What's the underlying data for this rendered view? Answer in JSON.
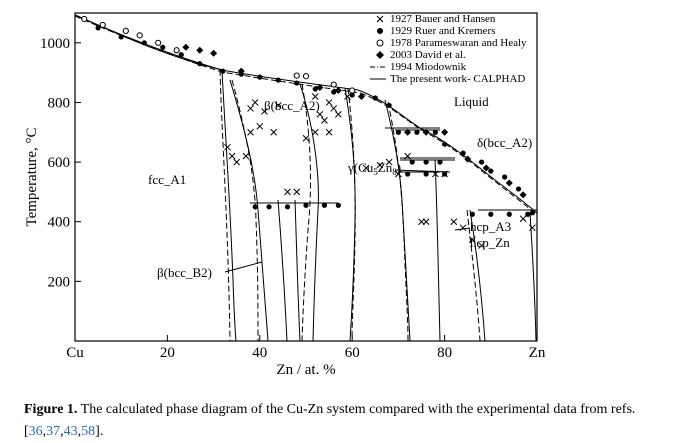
{
  "figure": {
    "x_ticks": [
      "Cu",
      "20",
      "40",
      "60",
      "80",
      "Zn"
    ],
    "y_ticks": [
      "200",
      "400",
      "600",
      "800",
      "1000"
    ],
    "xlabel": "Zn / at. %",
    "ylabel": "Temperature, °C",
    "legend": [
      {
        "marker": "×",
        "label": "1927 Bauer and Hansen"
      },
      {
        "marker": "●",
        "label": "1929 Ruer and Kremers"
      },
      {
        "marker": "○",
        "label": "1978 Parameswaran and Healy"
      },
      {
        "marker": "◆",
        "label": "2003 David et al."
      },
      {
        "marker": "-·-",
        "label": "1994 Miodownik"
      },
      {
        "marker": "—",
        "label": "The present work- CALPHAD"
      }
    ],
    "phase_labels": {
      "fcc": "fcc_A1",
      "bcc_a2": "β(bcc_A2)",
      "liquid": "Liquid",
      "delta": "δ(bcc_A2)",
      "gamma": "γ(Cu",
      "gamma_sub1": "5",
      "gamma_mid": "Zn",
      "gamma_sub2": "8",
      "gamma_end": ")",
      "hcp_a3": "hcp_A3",
      "hcp_zn": "hcp_Zn",
      "bcc_b2": "β(bcc_B2)"
    },
    "colors": {
      "ink": "#000000",
      "caption_link": "#2a6db5"
    }
  },
  "chart_data": {
    "type": "scatter",
    "title": "",
    "xlabel": "Zn / at. %",
    "ylabel": "Temperature, °C",
    "xlim": [
      0,
      100
    ],
    "ylim": [
      0,
      1100
    ],
    "x_tick_labels": [
      "Cu",
      "20",
      "40",
      "60",
      "80",
      "Zn"
    ],
    "y_ticks": [
      200,
      400,
      600,
      800,
      1000
    ],
    "legend_position": "top-right",
    "series": [
      {
        "name": "1927 Bauer and Hansen",
        "marker": "x",
        "points": [
          [
            33,
            650
          ],
          [
            34,
            620
          ],
          [
            35,
            600
          ],
          [
            37,
            620
          ],
          [
            38,
            700
          ],
          [
            38,
            780
          ],
          [
            39,
            800
          ],
          [
            40,
            720
          ],
          [
            41,
            770
          ],
          [
            43,
            700
          ],
          [
            44,
            790
          ],
          [
            46,
            500
          ],
          [
            48,
            500
          ],
          [
            50,
            680
          ],
          [
            52,
            700
          ],
          [
            52,
            820
          ],
          [
            53,
            760
          ],
          [
            54,
            740
          ],
          [
            55,
            700
          ],
          [
            55,
            800
          ],
          [
            56,
            780
          ],
          [
            57,
            760
          ],
          [
            59,
            820
          ],
          [
            63,
            580
          ],
          [
            66,
            590
          ],
          [
            68,
            600
          ],
          [
            70,
            560
          ],
          [
            72,
            620
          ],
          [
            75,
            400
          ],
          [
            76,
            400
          ],
          [
            78,
            560
          ],
          [
            80,
            560
          ],
          [
            82,
            400
          ],
          [
            84,
            380
          ],
          [
            86,
            340
          ],
          [
            88,
            320
          ],
          [
            97,
            410
          ],
          [
            99,
            380
          ]
        ]
      },
      {
        "name": "1929 Ruer and Kremers",
        "marker": "filled-circle",
        "points": [
          [
            5,
            1050
          ],
          [
            10,
            1020
          ],
          [
            15,
            1000
          ],
          [
            19,
            985
          ],
          [
            23,
            960
          ],
          [
            27,
            930
          ],
          [
            32,
            905
          ],
          [
            36,
            895
          ],
          [
            40,
            885
          ],
          [
            44,
            875
          ],
          [
            48,
            865
          ],
          [
            52,
            845
          ],
          [
            56,
            835
          ],
          [
            60,
            825
          ],
          [
            65,
            815
          ],
          [
            68,
            790
          ],
          [
            70,
            700
          ],
          [
            74,
            700
          ],
          [
            78,
            700
          ],
          [
            80,
            660
          ],
          [
            84,
            630
          ],
          [
            88,
            600
          ],
          [
            90,
            570
          ],
          [
            93,
            550
          ],
          [
            96,
            510
          ],
          [
            99,
            430
          ],
          [
            39,
            450
          ],
          [
            42,
            450
          ],
          [
            46,
            450
          ],
          [
            50,
            455
          ],
          [
            54,
            455
          ],
          [
            57,
            455
          ],
          [
            73,
            600
          ],
          [
            76,
            600
          ],
          [
            79,
            600
          ],
          [
            72,
            560
          ],
          [
            76,
            560
          ],
          [
            80,
            560
          ],
          [
            86,
            425
          ],
          [
            90,
            425
          ],
          [
            94,
            425
          ],
          [
            98,
            425
          ]
        ]
      },
      {
        "name": "1978 Parameswaran and Healy",
        "marker": "open-circle",
        "points": [
          [
            2,
            1080
          ],
          [
            6,
            1060
          ],
          [
            11,
            1040
          ],
          [
            14,
            1025
          ],
          [
            18,
            1000
          ],
          [
            22,
            975
          ],
          [
            48,
            890
          ],
          [
            50,
            888
          ],
          [
            56,
            860
          ],
          [
            60,
            840
          ]
        ]
      },
      {
        "name": "2003 David et al.",
        "marker": "filled-diamond",
        "points": [
          [
            24,
            985
          ],
          [
            27,
            975
          ],
          [
            30,
            965
          ],
          [
            36,
            905
          ],
          [
            53,
            850
          ],
          [
            57,
            840
          ],
          [
            62,
            820
          ],
          [
            72,
            700
          ],
          [
            76,
            700
          ],
          [
            80,
            700
          ],
          [
            85,
            610
          ],
          [
            89,
            580
          ],
          [
            94,
            530
          ],
          [
            97,
            490
          ]
        ]
      },
      {
        "name": "1994 Miodownik",
        "marker": "dash-dot-line",
        "points": [
          [
            0,
            1085
          ],
          [
            32,
            905
          ],
          [
            56,
            835
          ],
          [
            70,
            700
          ],
          [
            85,
            600
          ],
          [
            100,
            420
          ]
        ]
      },
      {
        "name": "The present work- CALPHAD",
        "marker": "solid-line",
        "points": [
          [
            0,
            1085
          ],
          [
            32,
            905
          ],
          [
            56,
            835
          ],
          [
            70,
            700
          ],
          [
            85,
            600
          ],
          [
            100,
            420
          ]
        ]
      }
    ]
  },
  "caption": {
    "label": "Figure 1.",
    "text": " The calculated phase diagram of the Cu-Zn system compared with the experimental data from refs. [",
    "refs": [
      "36",
      "37",
      "43",
      "58"
    ],
    "end": "]."
  }
}
